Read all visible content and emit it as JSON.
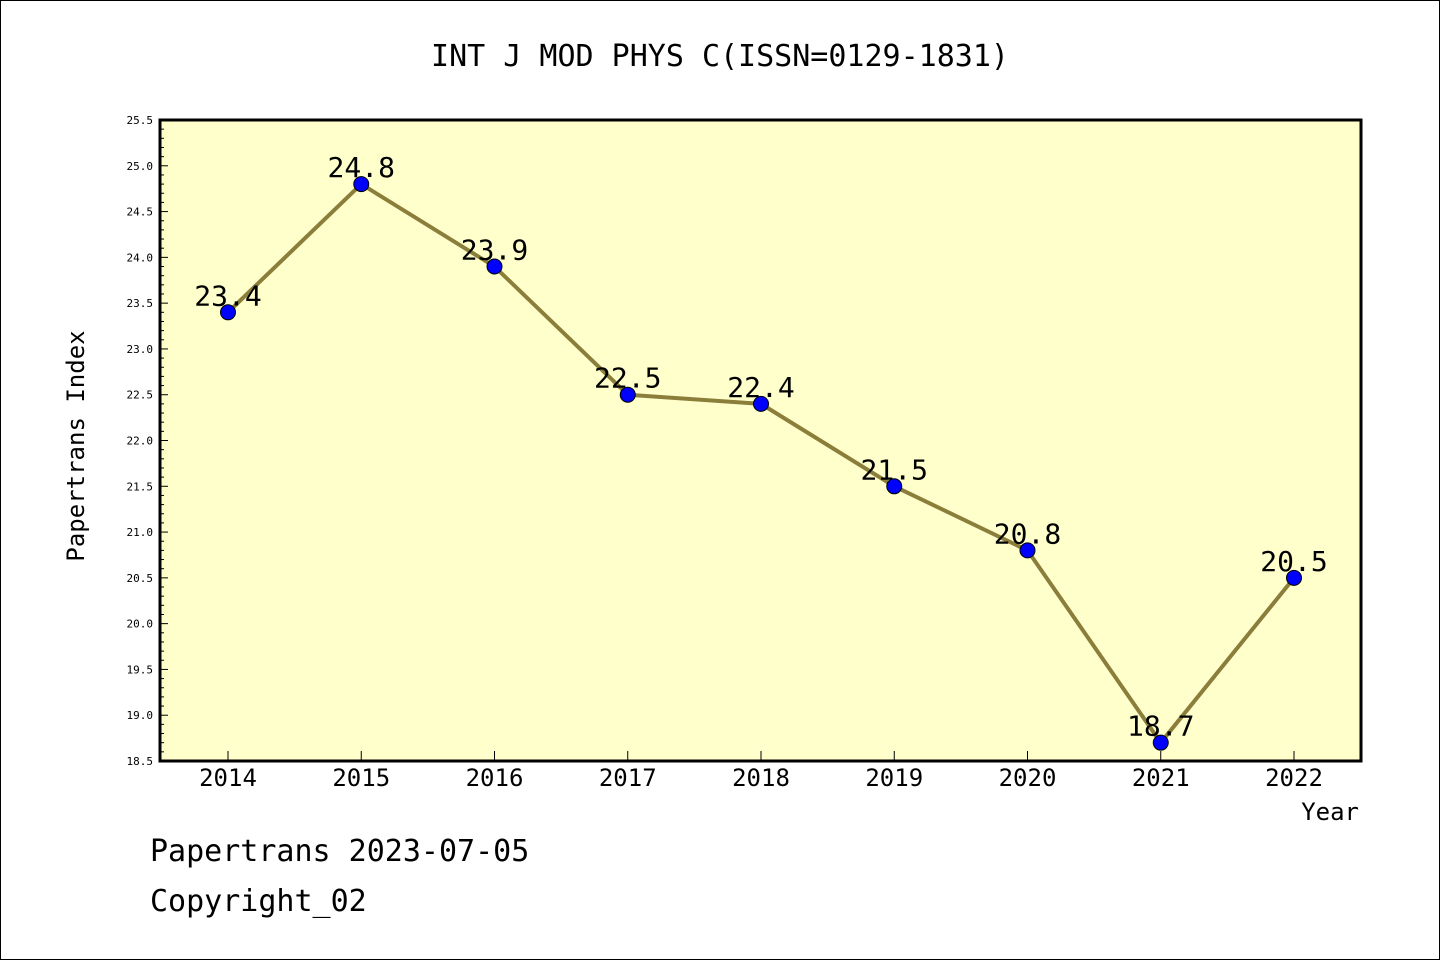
{
  "chart_data": {
    "type": "line",
    "title": "INT J MOD PHYS C(ISSN=0129-1831)",
    "xlabel": "Year",
    "ylabel": "Papertrans Index",
    "categories": [
      "2014",
      "2015",
      "2016",
      "2017",
      "2018",
      "2019",
      "2020",
      "2021",
      "2022"
    ],
    "series": [
      {
        "values": [
          23.4,
          24.8,
          23.9,
          22.5,
          22.4,
          21.5,
          20.8,
          18.7,
          20.5
        ],
        "labels": [
          "23.4",
          "24.8",
          "23.9",
          "22.5",
          "22.4",
          "21.5",
          "20.8",
          "18.7",
          "20.5"
        ]
      }
    ],
    "ylim": [
      18.5,
      25.5
    ],
    "yticks": [
      "18.5",
      "19.0",
      "19.5",
      "20.0",
      "20.5",
      "21.0",
      "21.5",
      "22.0",
      "22.5",
      "23.0",
      "23.5",
      "24.0",
      "24.5",
      "25.0",
      "25.5"
    ],
    "grid": false,
    "colors": {
      "plot_background": "#ffffcc",
      "line": "#8b7d3a",
      "marker": "#0000ff"
    }
  },
  "footer": {
    "line1": "Papertrans 2023-07-05",
    "line2": "Copyright_02"
  }
}
